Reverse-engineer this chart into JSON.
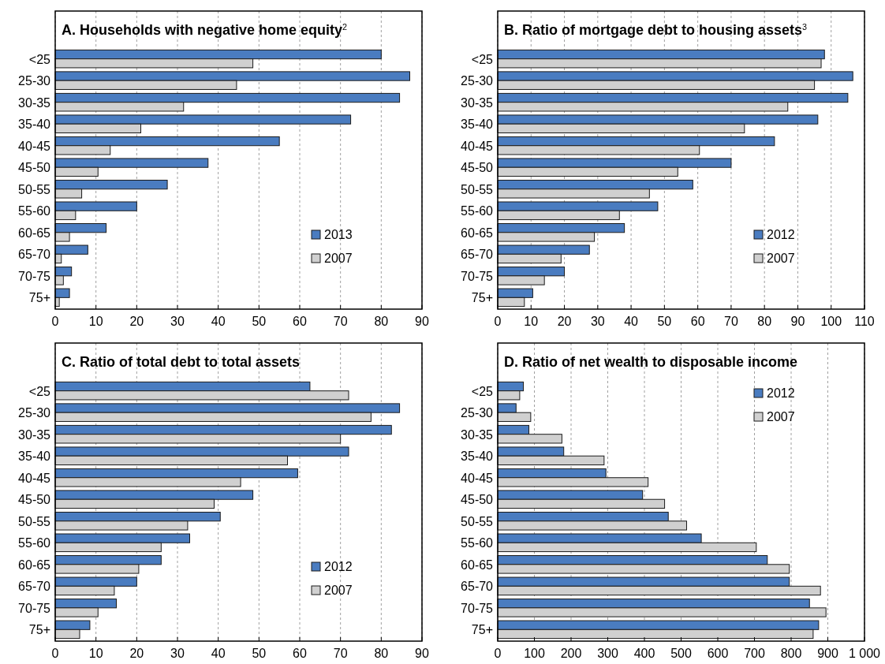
{
  "chart_data": [
    {
      "type": "bar",
      "orientation": "horizontal",
      "title": "A. Households with negative home equity$^{2}$",
      "categories": [
        "<25",
        "25-30",
        "30-35",
        "35-40",
        "40-45",
        "45-50",
        "50-55",
        "55-60",
        "60-65",
        "65-70",
        "70-75",
        "75+"
      ],
      "series": [
        {
          "name": "2013",
          "color": "#4a7cc0",
          "values": [
            80,
            87,
            84.5,
            72.5,
            55,
            37.5,
            27.5,
            20,
            12.5,
            8,
            4,
            3.5
          ]
        },
        {
          "name": "2007",
          "color": "#d0d0d0",
          "values": [
            48.5,
            44.5,
            31.5,
            21,
            13.5,
            10.5,
            6.5,
            5,
            3.5,
            1.5,
            2,
            1
          ]
        }
      ],
      "xlim": [
        0,
        90
      ],
      "xticks": [
        0,
        10,
        20,
        30,
        40,
        50,
        60,
        70,
        80,
        90
      ],
      "grid": "x",
      "legend": "bottom right"
    },
    {
      "type": "bar",
      "orientation": "horizontal",
      "title": "B. Ratio of mortgage debt to housing assets$^{3}$",
      "categories": [
        "<25",
        "25-30",
        "30-35",
        "35-40",
        "40-45",
        "45-50",
        "50-55",
        "55-60",
        "60-65",
        "65-70",
        "70-75",
        "75+"
      ],
      "series": [
        {
          "name": "2012",
          "color": "#4a7cc0",
          "values": [
            98,
            106.5,
            105,
            96,
            83,
            70,
            58.5,
            48,
            38,
            27.5,
            20,
            10.5
          ]
        },
        {
          "name": "2007",
          "color": "#d0d0d0",
          "values": [
            97,
            95,
            87,
            74,
            60.5,
            54,
            45.5,
            36.5,
            29,
            19,
            14,
            8
          ]
        }
      ],
      "xlim": [
        0,
        110
      ],
      "xticks": [
        0,
        10,
        20,
        30,
        40,
        50,
        60,
        70,
        80,
        90,
        100,
        110
      ],
      "grid": "x",
      "legend": "bottom right"
    },
    {
      "type": "bar",
      "orientation": "horizontal",
      "title": "C. Ratio of total debt to total assets",
      "categories": [
        "<25",
        "25-30",
        "30-35",
        "35-40",
        "40-45",
        "45-50",
        "50-55",
        "55-60",
        "60-65",
        "65-70",
        "70-75",
        "75+"
      ],
      "series": [
        {
          "name": "2012",
          "color": "#4a7cc0",
          "values": [
            62.5,
            84.5,
            82.5,
            72,
            59.5,
            48.5,
            40.5,
            33,
            26,
            20,
            15,
            8.5
          ]
        },
        {
          "name": "2007",
          "color": "#d0d0d0",
          "values": [
            72,
            77.5,
            70,
            57,
            45.5,
            39,
            32.5,
            26,
            20.5,
            14.5,
            10.5,
            6
          ]
        }
      ],
      "xlim": [
        0,
        90
      ],
      "xticks": [
        0,
        10,
        20,
        30,
        40,
        50,
        60,
        70,
        80,
        90
      ],
      "grid": "x",
      "legend": "bottom right"
    },
    {
      "type": "bar",
      "orientation": "horizontal",
      "title": "D. Ratio of net wealth to disposable income",
      "categories": [
        "<25",
        "25-30",
        "30-35",
        "35-40",
        "40-45",
        "45-50",
        "50-55",
        "55-60",
        "60-65",
        "65-70",
        "70-75",
        "75+"
      ],
      "series": [
        {
          "name": "2012",
          "color": "#4a7cc0",
          "values": [
            70,
            50,
            85,
            180,
            295,
            395,
            465,
            555,
            735,
            795,
            850,
            875
          ]
        },
        {
          "name": "2007",
          "color": "#d0d0d0",
          "values": [
            60,
            90,
            175,
            290,
            410,
            455,
            515,
            705,
            795,
            880,
            895,
            860
          ]
        }
      ],
      "xlim": [
        0,
        1000
      ],
      "xticks": [
        0,
        100,
        200,
        300,
        400,
        500,
        600,
        700,
        800,
        900,
        {
          "value": 1000,
          "label": "1 000"
        }
      ],
      "grid": "x",
      "legend": "top right"
    }
  ]
}
